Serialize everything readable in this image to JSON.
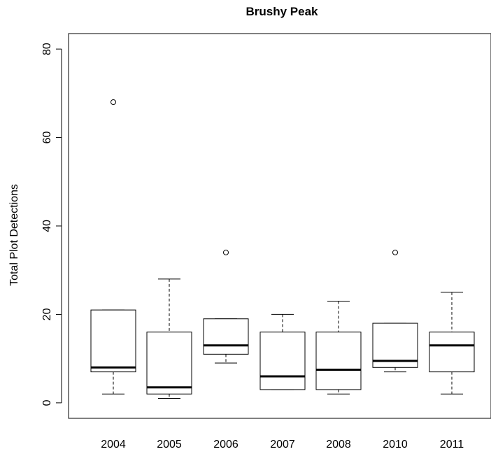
{
  "chart_data": {
    "type": "box",
    "title": "Brushy Peak",
    "xlabel": "",
    "ylabel": "Total Plot Detections",
    "ylim": [
      -3.5,
      83.5
    ],
    "y_ticks": [
      "0",
      "20",
      "40",
      "60",
      "80"
    ],
    "grid": false,
    "categories": [
      "2004",
      "2005",
      "2006",
      "2007",
      "2008",
      "2010",
      "2011"
    ],
    "boxes": [
      {
        "category": "2004",
        "whisker_low": 2,
        "q1": 7,
        "median": 8,
        "q3": 21,
        "whisker_high": 21,
        "outliers": [
          68
        ]
      },
      {
        "category": "2005",
        "whisker_low": 1,
        "q1": 2,
        "median": 3.5,
        "q3": 16,
        "whisker_high": 28,
        "outliers": []
      },
      {
        "category": "2006",
        "whisker_low": 9,
        "q1": 11,
        "median": 13,
        "q3": 19,
        "whisker_high": 19,
        "outliers": [
          34
        ]
      },
      {
        "category": "2007",
        "whisker_low": 3,
        "q1": 3,
        "median": 6,
        "q3": 16,
        "whisker_high": 20,
        "outliers": []
      },
      {
        "category": "2008",
        "whisker_low": 2,
        "q1": 3,
        "median": 7.5,
        "q3": 16,
        "whisker_high": 23,
        "outliers": []
      },
      {
        "category": "2010",
        "whisker_low": 7,
        "q1": 8,
        "median": 9.5,
        "q3": 18,
        "whisker_high": 18,
        "outliers": [
          34
        ]
      },
      {
        "category": "2011",
        "whisker_low": 2,
        "q1": 7,
        "median": 13,
        "q3": 16,
        "whisker_high": 25,
        "outliers": []
      }
    ]
  }
}
